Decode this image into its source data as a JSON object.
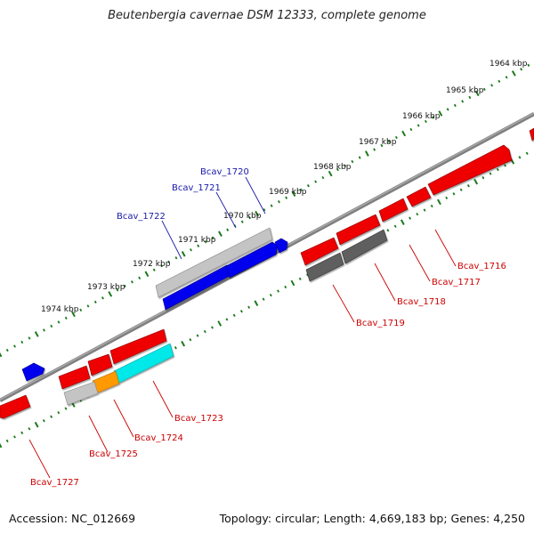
{
  "title": "Beutenbergia cavernae DSM 12333, complete genome",
  "footer": {
    "accession": "Accession: NC_012669",
    "summary": "Topology: circular; Length: 4,669,183 bp; Genes: 4,250"
  },
  "colors": {
    "tick": "#1a7a1a",
    "backbone": "#808080",
    "forward_gene": "#0000ee",
    "reverse_gene": "#ee0000",
    "pseudo_light": "#c4c4c4",
    "pseudo_dark": "#5e5e5e",
    "cyan_feature": "#00e8e8",
    "orange_feature": "#ff9900",
    "label_forward": "#1a1aaa",
    "label_reverse": "#cc0000"
  },
  "scale_labels": [
    "1964 kbp",
    "1965 kbp",
    "1966 kbp",
    "1967 kbp",
    "1968 kbp",
    "1969 kbp",
    "1970 kbp",
    "1971 kbp",
    "1972 kbp",
    "1973 kbp",
    "1974 kbp"
  ],
  "gene_labels": {
    "forward": [
      "Bcav_1720",
      "Bcav_1721",
      "Bcav_1722"
    ],
    "reverse": [
      "Bcav_1716",
      "Bcav_1717",
      "Bcav_1718",
      "Bcav_1719",
      "Bcav_1723",
      "Bcav_1724",
      "Bcav_1725",
      "Bcav_1727"
    ]
  }
}
